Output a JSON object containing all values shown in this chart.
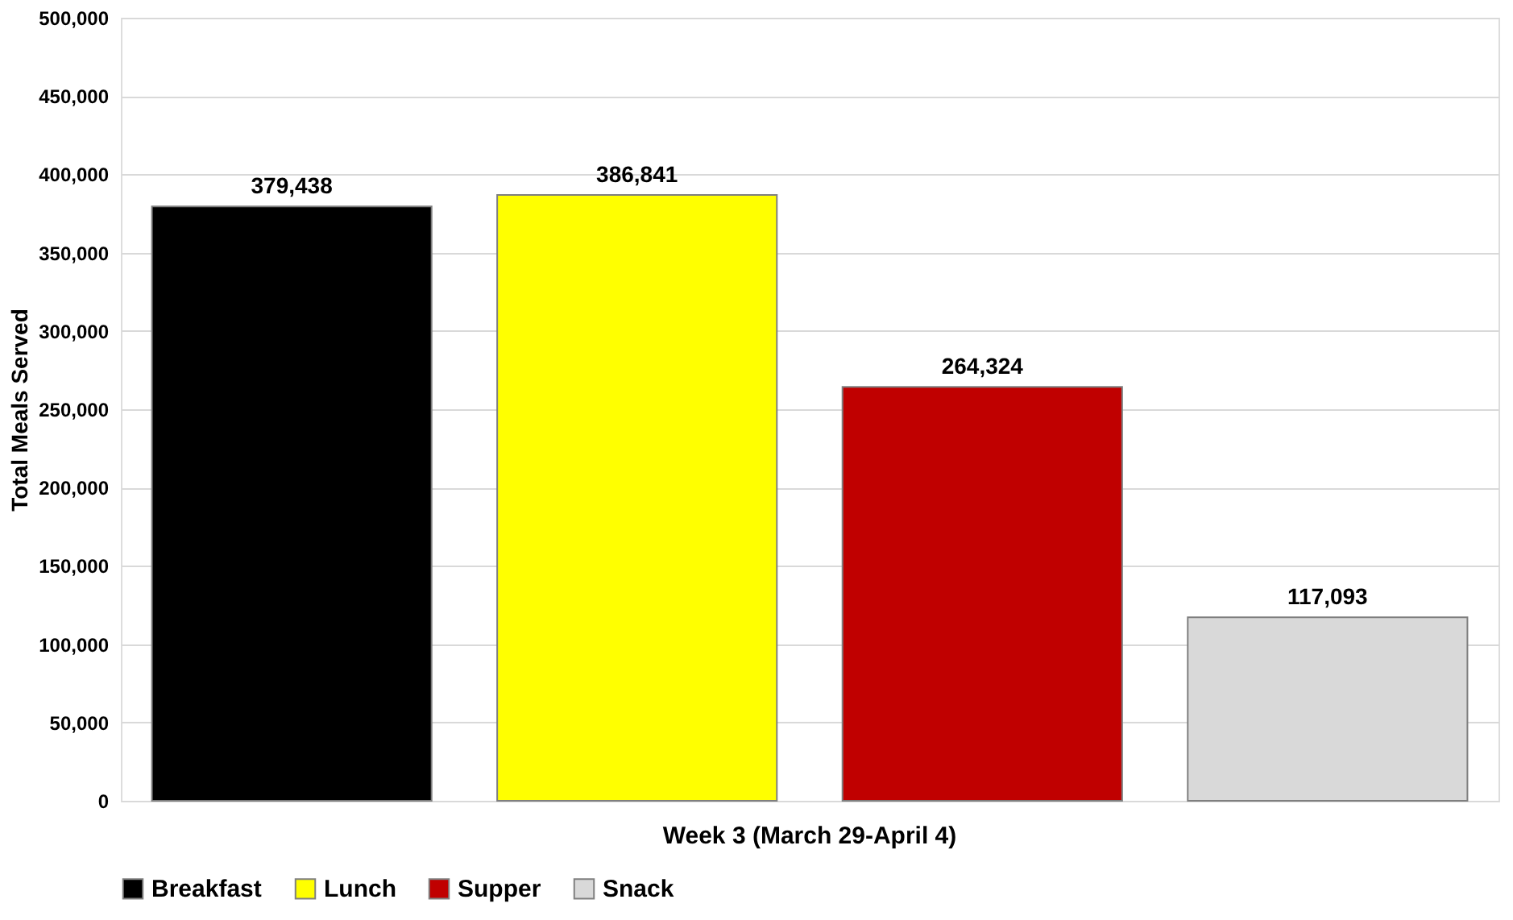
{
  "chart_data": {
    "type": "bar",
    "categories": [
      "Week 3 (March 29-April 4)"
    ],
    "ylabel": "Total Meals Served",
    "series": [
      {
        "name": "Breakfast",
        "color": "#000000",
        "values": [
          379438
        ],
        "value_labels": [
          "379,438"
        ]
      },
      {
        "name": "Lunch",
        "color": "#ffff00",
        "values": [
          386841
        ],
        "value_labels": [
          "386,841"
        ]
      },
      {
        "name": "Supper",
        "color": "#c00000",
        "values": [
          264324
        ],
        "value_labels": [
          "264,324"
        ]
      },
      {
        "name": "Snack",
        "color": "#d9d9d9",
        "values": [
          117093
        ],
        "value_labels": [
          "117,093"
        ]
      }
    ],
    "ylim": [
      0,
      500000
    ],
    "yticks": [
      0,
      {
        "value": 50000,
        "label": "50,000"
      },
      {
        "value": 100000,
        "label": "100,000"
      },
      {
        "value": 150000,
        "label": "150,000"
      },
      {
        "value": 200000,
        "label": "200,000"
      },
      {
        "value": 250000,
        "label": "250,000"
      },
      {
        "value": 300000,
        "label": "300,000"
      },
      {
        "value": 350000,
        "label": "350,000"
      },
      {
        "value": 400000,
        "label": "400,000"
      },
      {
        "value": 450000,
        "label": "450,000"
      },
      {
        "value": 500000,
        "label": "500,000"
      }
    ],
    "grid": "y",
    "legend": "bottom"
  }
}
